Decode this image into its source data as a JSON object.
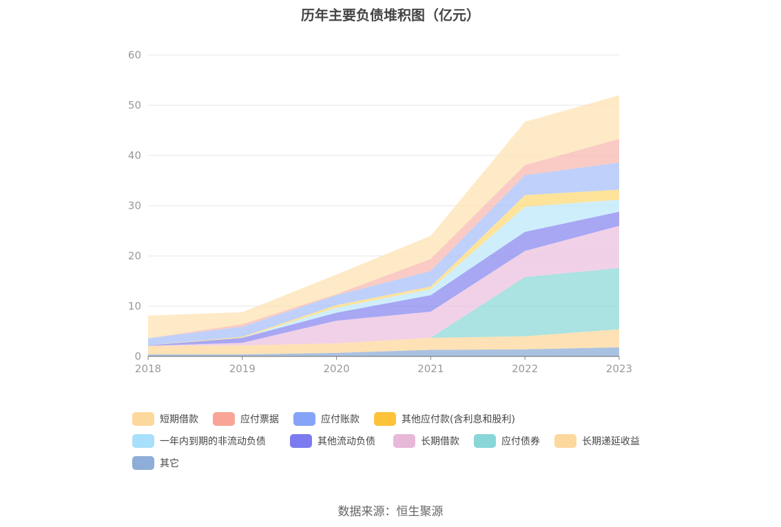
{
  "chart_data": {
    "type": "area",
    "stacked": true,
    "title": "历年主要负债堆积图（亿元）",
    "x": [
      "2018",
      "2019",
      "2020",
      "2021",
      "2022",
      "2023"
    ],
    "ylim": [
      0,
      60
    ],
    "yticks": [
      0,
      10,
      20,
      30,
      40,
      50,
      60
    ],
    "grid": true,
    "legend_position": "bottom",
    "series": [
      {
        "name": "其它",
        "color": "#8eadd8",
        "values": [
          0.4,
          0.4,
          0.7,
          1.3,
          1.4,
          1.8
        ]
      },
      {
        "name": "长期递延收益",
        "color": "#fdd89c",
        "values": [
          1.7,
          1.8,
          1.9,
          2.4,
          2.6,
          3.6
        ]
      },
      {
        "name": "应付债券",
        "color": "#8fd8d8",
        "values": [
          0,
          0,
          0,
          0,
          11.8,
          12.2
        ]
      },
      {
        "name": "长期借款",
        "color": "#ecc1df",
        "values": [
          0,
          0.5,
          4.5,
          5.2,
          5.2,
          8.4
        ]
      },
      {
        "name": "其他流动负债",
        "color": "#8a8af0",
        "values": [
          0.1,
          1.0,
          1.6,
          3.3,
          3.8,
          2.8
        ]
      },
      {
        "name": "一年内到期的非流动负债",
        "color": "#bfe8fb",
        "values": [
          0,
          0,
          1.0,
          1.2,
          5.0,
          2.4
        ]
      },
      {
        "name": "其他应付款(含利息和股利)",
        "color": "#fdd97a",
        "values": [
          0,
          0.2,
          0.5,
          0.5,
          2.3,
          2.0
        ]
      },
      {
        "name": "应付账款",
        "color": "#a9c1f8",
        "values": [
          1.4,
          2.0,
          2.0,
          3.1,
          4.0,
          5.4
        ]
      },
      {
        "name": "应付票据",
        "color": "#f8b8b0",
        "values": [
          0,
          0.5,
          0.2,
          2.4,
          2.0,
          4.7
        ]
      },
      {
        "name": "短期借款",
        "color": "#fde3b3",
        "values": [
          4.5,
          2.4,
          3.9,
          4.6,
          8.6,
          8.7
        ]
      }
    ],
    "legend": [
      {
        "name": "短期借款",
        "color": "#fdd89c"
      },
      {
        "name": "应付票据",
        "color": "#f8a598"
      },
      {
        "name": "应付账款",
        "color": "#86a4f7"
      },
      {
        "name": "其他应付款(含利息和股利)",
        "color": "#fcc33a"
      },
      {
        "name": "一年内到期的非流动负债",
        "color": "#a8e0fb"
      },
      {
        "name": "其他流动负债",
        "color": "#7b7bef"
      },
      {
        "name": "长期借款",
        "color": "#e8b8d8"
      },
      {
        "name": "应付债券",
        "color": "#88d6d8"
      },
      {
        "name": "长期递延收益",
        "color": "#fdd89c"
      },
      {
        "name": "其它",
        "color": "#8eadd8"
      }
    ]
  },
  "source": "数据来源：恒生聚源"
}
